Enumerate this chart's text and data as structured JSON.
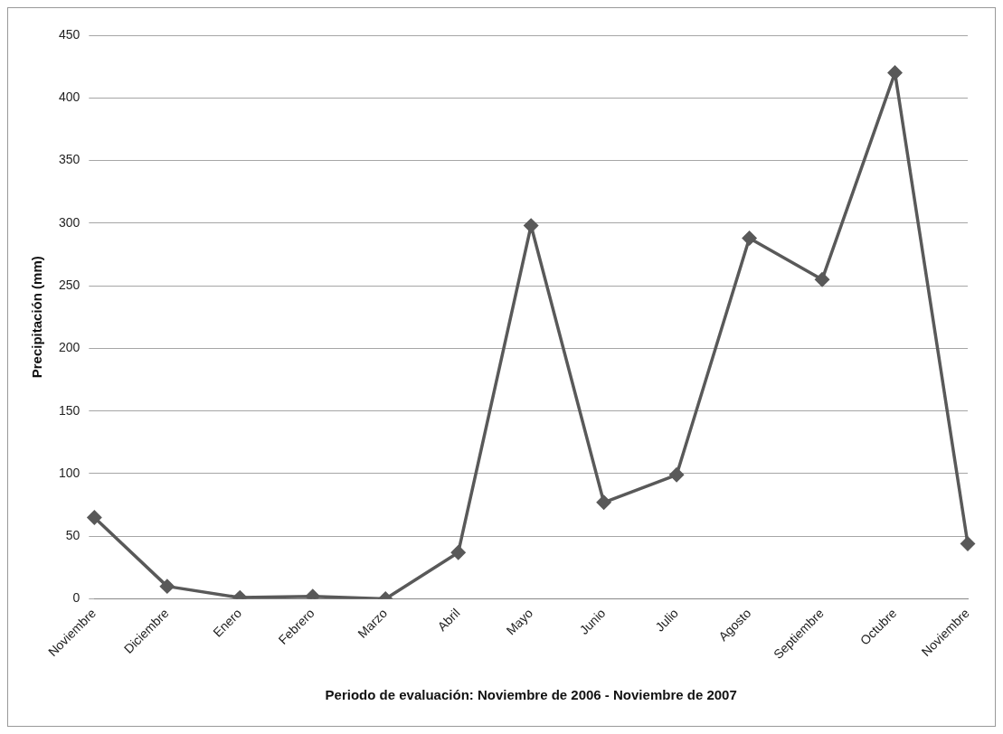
{
  "chart_data": {
    "type": "line",
    "xlabel": "Periodo de evaluación: Noviembre de 2006 - Noviembre de 2007",
    "ylabel": "Precipitación (mm)",
    "categories": [
      "Noviembre",
      "Diciembre",
      "Enero",
      "Febrero",
      "Marzo",
      "Abril",
      "Mayo",
      "Junio",
      "Julio",
      "Agosto",
      "Septiembre",
      "Octubre",
      "Noviembre"
    ],
    "series": [
      {
        "color": "#595959",
        "values": [
          65,
          10,
          1,
          2,
          0,
          37,
          298,
          77,
          99,
          288,
          255,
          420,
          44
        ]
      }
    ],
    "ylim": [
      0,
      450
    ],
    "yticks": [
      0,
      50,
      100,
      150,
      200,
      250,
      300,
      350,
      400,
      450
    ],
    "grid": "y",
    "legend": false,
    "marker": "diamond",
    "line_style": "solid"
  }
}
